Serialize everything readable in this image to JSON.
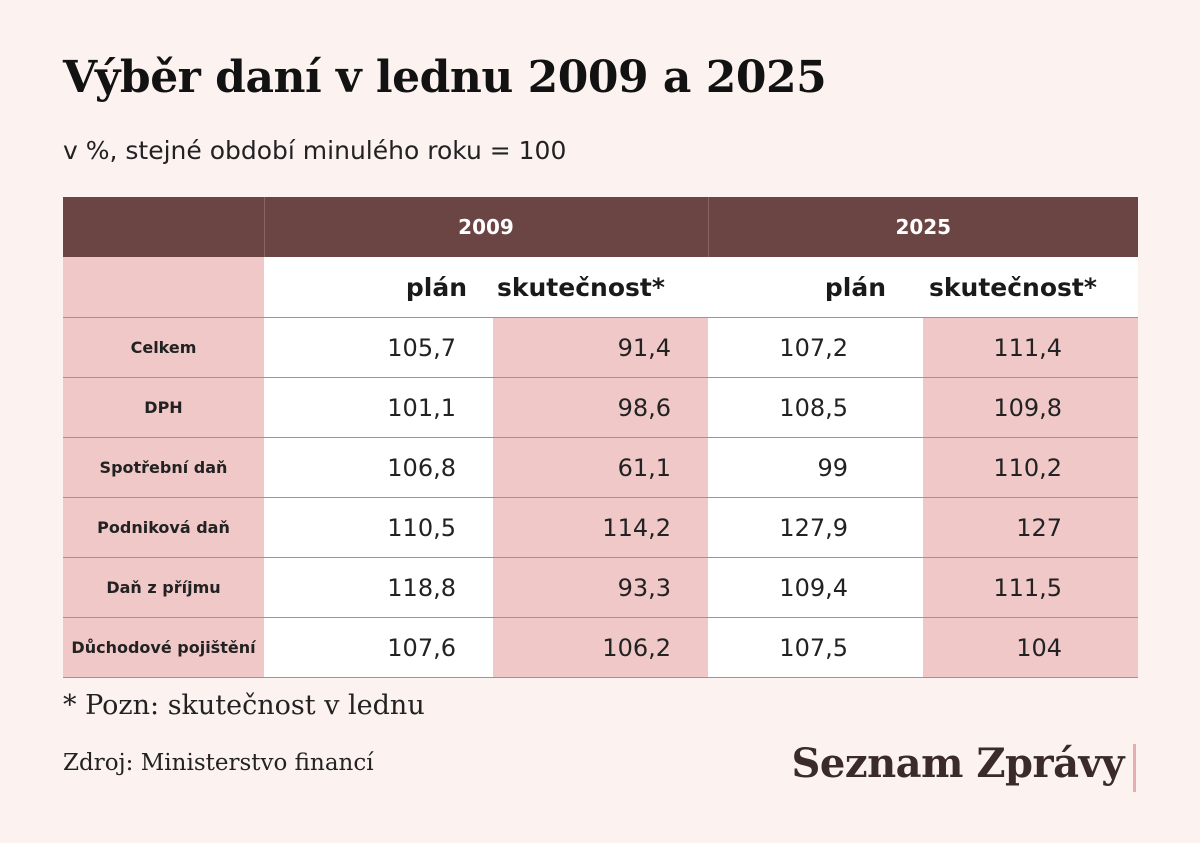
{
  "title": "Výběr daní v lednu 2009 a 2025",
  "subtitle": "v %, stejné období minulého roku = 100",
  "note": "* Pozn: skutečnost v lednu",
  "source": "Zdroj: Ministerstvo financí",
  "logo": "Seznam Zprávy",
  "colors": {
    "background": "#fcf3f0",
    "header": "#6b4544",
    "highlight": "#f0c8c8",
    "rule": "#b58b89"
  },
  "chart_data": {
    "type": "table",
    "title": "Výběr daní v lednu 2009 a 2025",
    "subtitle": "v %, stejné období minulého roku = 100",
    "years": [
      "2009",
      "2025"
    ],
    "columns": [
      "plán",
      "skutečnost*",
      "plán",
      "skutečnost*"
    ],
    "rows": [
      {
        "label": "Celkem",
        "values": [
          "105,7",
          "91,4",
          "107,2",
          "111,4"
        ]
      },
      {
        "label": "DPH",
        "values": [
          "101,1",
          "98,6",
          "108,5",
          "109,8"
        ]
      },
      {
        "label": "Spotřební daň",
        "values": [
          "106,8",
          "61,1",
          "99",
          "110,2"
        ]
      },
      {
        "label": "Podniková daň",
        "values": [
          "110,5",
          "114,2",
          "127,9",
          "127"
        ]
      },
      {
        "label": "Daň z příjmu",
        "values": [
          "118,8",
          "93,3",
          "109,4",
          "111,5"
        ]
      },
      {
        "label": "Důchodové pojištění",
        "values": [
          "107,6",
          "106,2",
          "107,5",
          "104"
        ]
      }
    ]
  }
}
